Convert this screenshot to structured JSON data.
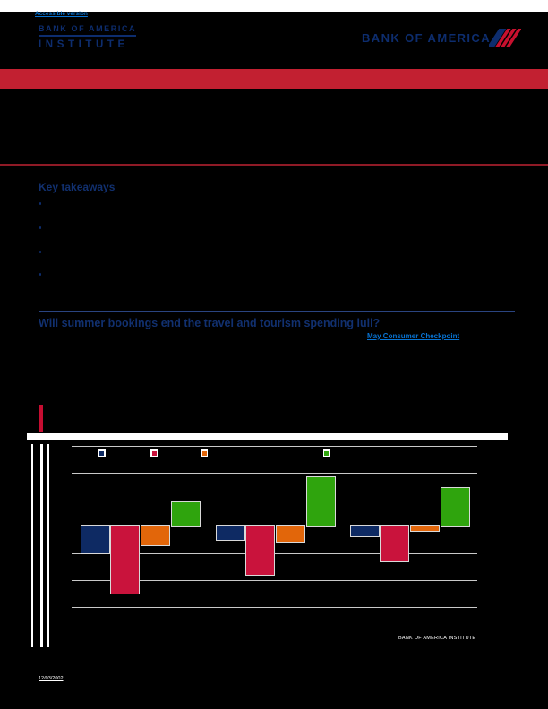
{
  "header": {
    "accessible_link": "Accessible version",
    "institute_logo": {
      "line1": "BANK OF AMERICA",
      "line2": "INSTITUTE"
    },
    "brand_logo_text": "BANK OF AMERICA",
    "flag_icon": "bofa-flag-icon"
  },
  "colors": {
    "page_bg": "#000000",
    "top_strip": "#ffffff",
    "banner_red": "#c22031",
    "accent_red": "#c60d31",
    "dark_red_line": "#8f1a26",
    "navy": "#0d2d6e",
    "heading_navy": "#11306f",
    "link_blue": "#0873d2",
    "gridline": "#c9c9c9"
  },
  "key_takeaways": {
    "heading": "Key takeaways",
    "bullets": [
      "",
      "",
      "",
      ""
    ]
  },
  "article": {
    "heading": "Will summer bookings end the travel and tourism spending lull?",
    "link_label": "May Consumer Checkpoint"
  },
  "chart_section": {
    "brand_footer": "BANK OF AMERICA INSTITUTE"
  },
  "footer": {
    "date": "12/03/2002"
  },
  "chart_data": {
    "type": "bar",
    "title": "",
    "categories": [
      "",
      "",
      ""
    ],
    "series": [
      {
        "name": "series-navy",
        "color": "#0e2a63",
        "values": [
          -1.0,
          -0.5,
          -0.35
        ]
      },
      {
        "name": "series-crimson",
        "color": "#c9133c",
        "values": [
          -2.5,
          -1.8,
          -1.3
        ]
      },
      {
        "name": "series-orange",
        "color": "#e2660a",
        "values": [
          -0.7,
          -0.6,
          -0.15
        ]
      },
      {
        "name": "series-green",
        "color": "#2fa40d",
        "values": [
          0.9,
          1.85,
          1.45
        ]
      }
    ],
    "ylim": [
      -3,
      3
    ],
    "gridline_values": [
      3,
      2,
      1,
      -1,
      -2,
      -3
    ],
    "zero_line_visible": false,
    "legend_position": "top"
  }
}
